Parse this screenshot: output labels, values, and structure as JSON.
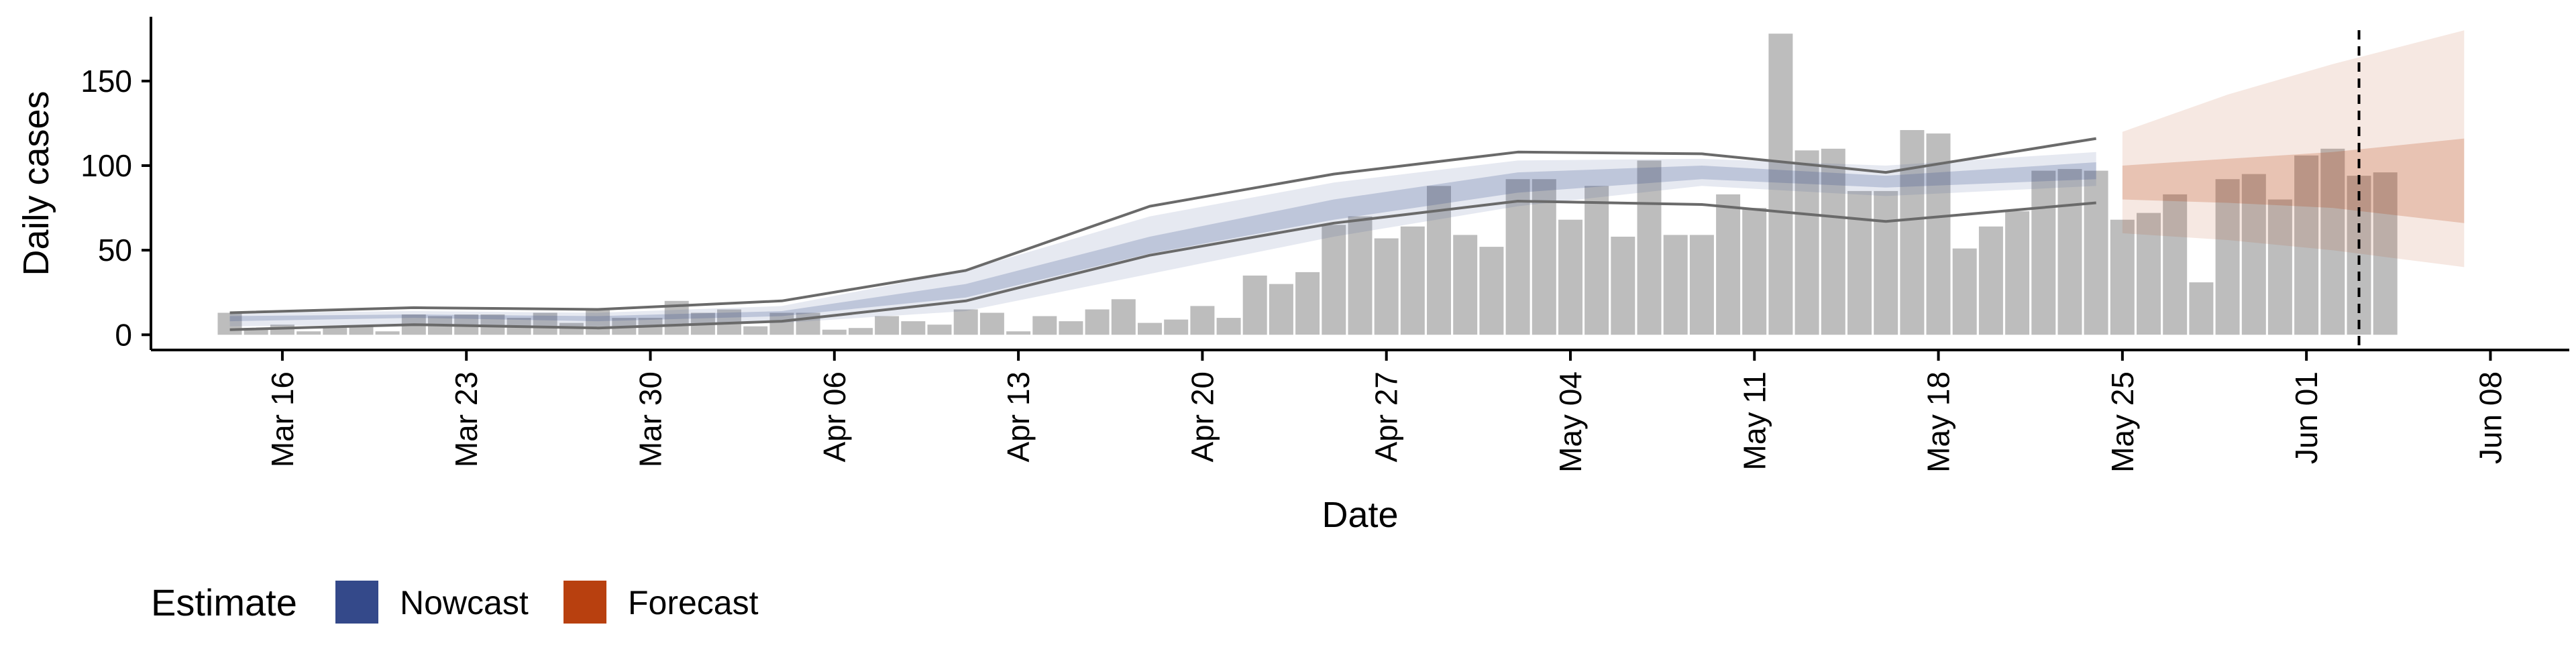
{
  "chart_data": {
    "type": "bar",
    "xlabel": "Date",
    "ylabel": "Daily cases",
    "ylim": [
      -9,
      188
    ],
    "y_ticks": [
      0,
      50,
      100,
      150
    ],
    "x_ticks": [
      "Mar 16",
      "Mar 23",
      "Mar 30",
      "Apr 06",
      "Apr 13",
      "Apr 20",
      "Apr 27",
      "May 04",
      "May 11",
      "May 18",
      "May 25",
      "Jun 01",
      "Jun 08"
    ],
    "x_range": [
      "2020-03-11",
      "2020-06-11"
    ],
    "start_date": "2020-03-14",
    "daily_cases": [
      13,
      4,
      6,
      2,
      5,
      5,
      2,
      12,
      11,
      12,
      12,
      10,
      13,
      7,
      15,
      10,
      10,
      20,
      13,
      15,
      5,
      13,
      13,
      3,
      4,
      11,
      8,
      6,
      15,
      13,
      2,
      11,
      8,
      15,
      21,
      7,
      9,
      17,
      10,
      35,
      30,
      37,
      65,
      70,
      57,
      64,
      88,
      59,
      52,
      92,
      92,
      68,
      88,
      58,
      103,
      59,
      59,
      83,
      75,
      178,
      109,
      110,
      85,
      85,
      121,
      119,
      51,
      64,
      73,
      97,
      98,
      97,
      68,
      72,
      83,
      31,
      92,
      95,
      80,
      106,
      110,
      94,
      96
    ],
    "forecast_start": "2020-05-25",
    "forecast_end_marker": "2020-06-03",
    "nowcast": {
      "dates": [
        "2020-03-14",
        "2020-03-21",
        "2020-03-28",
        "2020-04-04",
        "2020-04-11",
        "2020-04-18",
        "2020-04-25",
        "2020-05-02",
        "2020-05-09",
        "2020-05-16",
        "2020-05-24"
      ],
      "lower_90": [
        5,
        6,
        5,
        7,
        14,
        36,
        58,
        76,
        88,
        82,
        88
      ],
      "upper_90": [
        13,
        14,
        13,
        17,
        38,
        70,
        90,
        103,
        104,
        100,
        108
      ],
      "lower_50": [
        8,
        10,
        8,
        11,
        22,
        48,
        68,
        84,
        92,
        87,
        92
      ],
      "upper_50": [
        11,
        12,
        11,
        14,
        30,
        58,
        80,
        96,
        100,
        94,
        102
      ],
      "lower_line": [
        3,
        6,
        4,
        8,
        20,
        47,
        66,
        79,
        77,
        67,
        78
      ],
      "upper_line": [
        13,
        16,
        15,
        20,
        38,
        76,
        95,
        108,
        107,
        96,
        116
      ]
    },
    "forecast": {
      "dates": [
        "2020-05-25",
        "2020-05-29",
        "2020-06-02",
        "2020-06-07"
      ],
      "lower_90": [
        60,
        56,
        50,
        40
      ],
      "upper_90": [
        120,
        142,
        160,
        180
      ],
      "lower_50": [
        80,
        78,
        75,
        66
      ],
      "upper_50": [
        100,
        104,
        108,
        116
      ]
    },
    "grid": false,
    "legend_placement": "bottom-left"
  },
  "legend": {
    "title": "Estimate",
    "items": [
      {
        "label": "Nowcast",
        "color": "#34498a"
      },
      {
        "label": "Forecast",
        "color": "#b8400f"
      }
    ]
  },
  "colors": {
    "bars": "#bdbdbd",
    "nowcast": "#34498a",
    "forecast": "#b8400f",
    "ci_lines": "#6a6a6a",
    "marker": "#000000"
  }
}
